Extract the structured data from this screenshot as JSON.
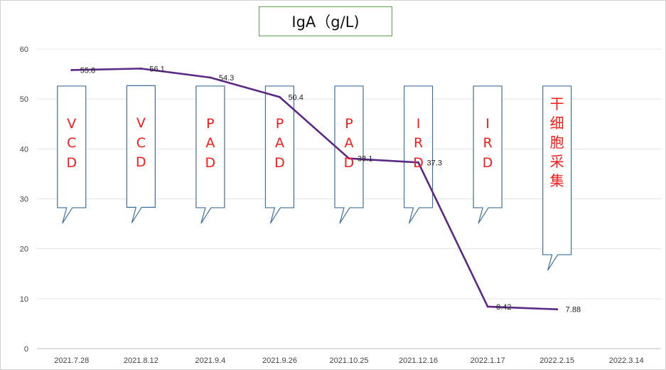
{
  "chart_data": {
    "type": "line",
    "title": "IgA（g/L)",
    "xlabel": "",
    "ylabel": "",
    "categories": [
      "2021.7.28",
      "2021.8.12",
      "2021.9.4",
      "2021.9.26",
      "2021.10.25",
      "2021.12.16",
      "2022.1.17",
      "2022.2.15",
      "2022.3.14"
    ],
    "series": [
      {
        "values": [
          55.8,
          56.1,
          54.3,
          50.4,
          38.1,
          37.3,
          8.42,
          7.88,
          null
        ],
        "labels": [
          "55.8",
          "56.1",
          "54.3",
          "50.4",
          "38.1",
          "37.3",
          "8.42",
          "7.88",
          ""
        ]
      }
    ],
    "ylim": [
      0,
      60
    ],
    "yticks": [
      0,
      10,
      20,
      30,
      40,
      50,
      60
    ],
    "grid": true,
    "colors": {
      "line": "#5a2a86",
      "callout_border": "#3f6f9e",
      "callout_text": "#ff1a1a",
      "title_border": "#5aa84a"
    },
    "annotations": [
      {
        "category": "2021.7.28",
        "text": "VCD",
        "chars": [
          "V",
          "C",
          "D"
        ]
      },
      {
        "category": "2021.8.12",
        "text": "VCD",
        "chars": [
          "V",
          "C",
          "D"
        ]
      },
      {
        "category": "2021.9.4",
        "text": "PAD",
        "chars": [
          "P",
          "A",
          "D"
        ]
      },
      {
        "category": "2021.9.26",
        "text": "PAD",
        "chars": [
          "P",
          "A",
          "D"
        ]
      },
      {
        "category": "2021.10.25",
        "text": "PAD",
        "chars": [
          "P",
          "A",
          "D"
        ]
      },
      {
        "category": "2021.12.16",
        "text": "IRD",
        "chars": [
          "I",
          "R",
          "D"
        ]
      },
      {
        "category": "2022.1.17",
        "text": "IRD",
        "chars": [
          "I",
          "R",
          "D"
        ]
      },
      {
        "category": "2022.2.15",
        "text": "干细胞采集",
        "chars": [
          "干",
          "细",
          "胞",
          "采",
          "集"
        ]
      }
    ]
  }
}
